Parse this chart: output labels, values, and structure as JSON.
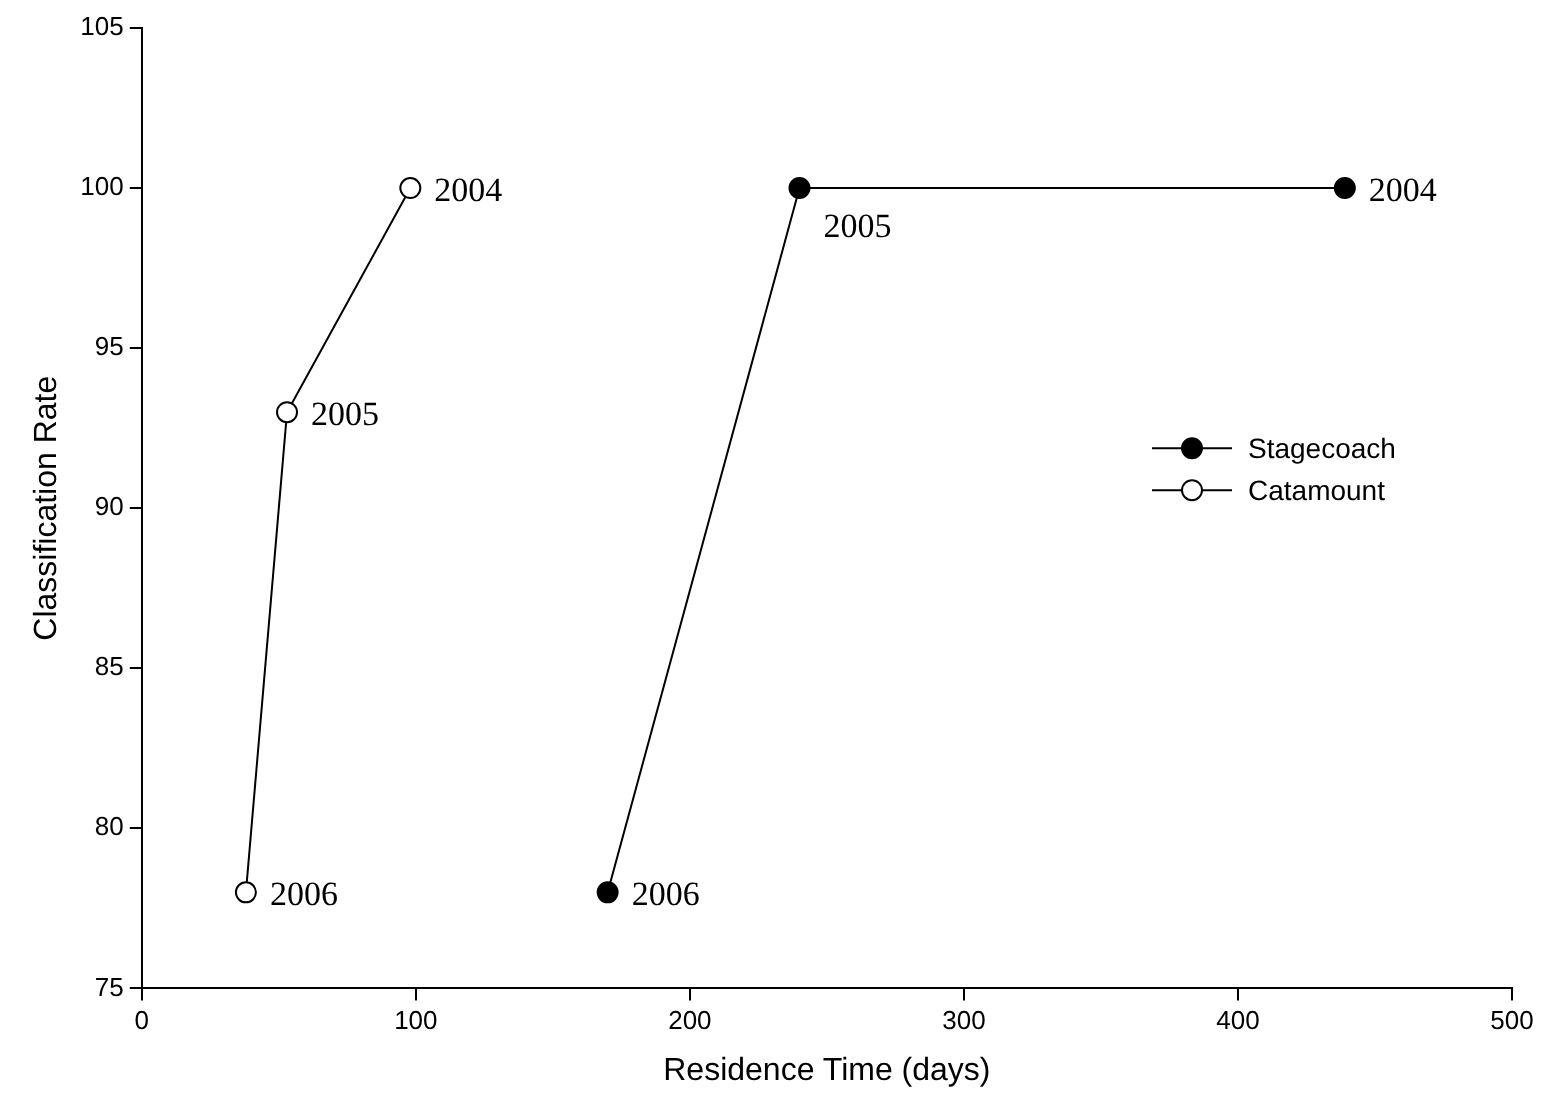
{
  "chart_data": {
    "type": "line",
    "xlabel": "Residence Time (days)",
    "ylabel": "Classification Rate",
    "xlim": [
      0,
      500
    ],
    "xticks": [
      0,
      100,
      200,
      300,
      400,
      500
    ],
    "ylim": [
      75,
      105
    ],
    "yticks": [
      75,
      80,
      85,
      90,
      95,
      100,
      105
    ],
    "series": [
      {
        "name": "Stagecoach",
        "color": "#000000",
        "marker": "circle",
        "colors": [
          "#000000",
          "#000000",
          "#000000"
        ],
        "x": [
          170,
          240,
          439
        ],
        "values": [
          78,
          100,
          100
        ]
      },
      {
        "name": "Catamount",
        "color": "#000000",
        "marker": "circle",
        "colors": [
          "#ffffff",
          "#ffffff",
          "#ffffff"
        ],
        "x": [
          38,
          53,
          98
        ],
        "values": [
          78,
          93,
          100
        ]
      }
    ],
    "annotations": [
      {
        "text": "2004",
        "x": 439,
        "y": 100
      },
      {
        "text": "2005",
        "x": 240,
        "y": 100
      },
      {
        "text": "2006",
        "x": 170,
        "y": 78
      },
      {
        "text": "2004",
        "x": 98,
        "y": 100
      },
      {
        "text": "2005",
        "x": 53,
        "y": 93
      },
      {
        "text": "2006",
        "x": 38,
        "y": 78
      }
    ],
    "legend": "right",
    "grid": false
  }
}
